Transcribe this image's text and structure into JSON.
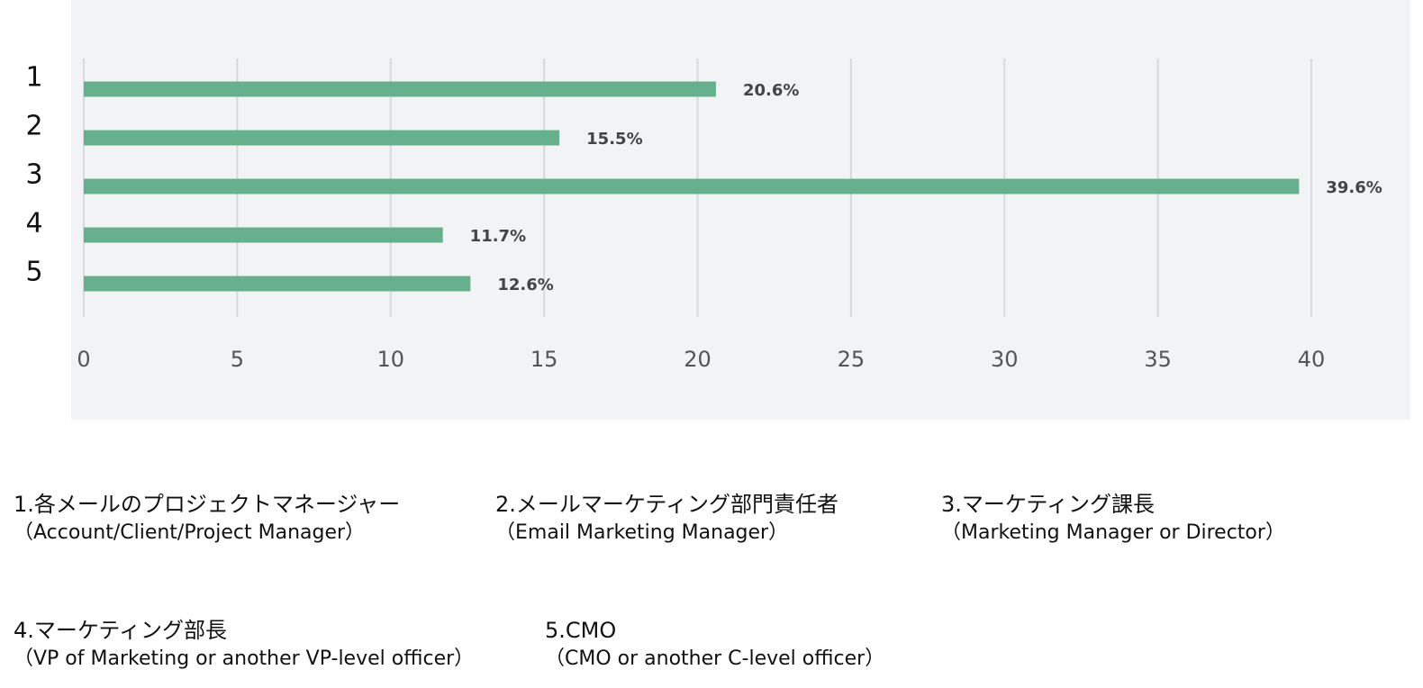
{
  "chart_data": {
    "type": "bar",
    "orientation": "horizontal",
    "categories": [
      "1",
      "2",
      "3",
      "4",
      "5"
    ],
    "values": [
      20.6,
      15.5,
      39.6,
      11.7,
      12.6
    ],
    "value_labels": [
      "20.6%",
      "15.5%",
      "39.6%",
      "11.7%",
      "12.6%"
    ],
    "color": "#66b08e",
    "xlim": [
      0,
      40
    ],
    "xticks": [
      0,
      5,
      10,
      15,
      20,
      25,
      30,
      35,
      40
    ],
    "grid": true
  },
  "notes": [
    {
      "title": "1.各メールのプロジェクトマネージャー",
      "subtitle": "（Account/Client/Project Manager）"
    },
    {
      "title": "2.メールマーケティング部門責任者",
      "subtitle": "（Email Marketing Manager）"
    },
    {
      "title": "3.マーケティング課長",
      "subtitle": "（Marketing Manager or Director）"
    },
    {
      "title": "4.マーケティング部長",
      "subtitle": "（VP of Marketing or another VP-level officer）"
    },
    {
      "title": "5.CMO",
      "subtitle": "（CMO or another C-level officer）"
    }
  ]
}
